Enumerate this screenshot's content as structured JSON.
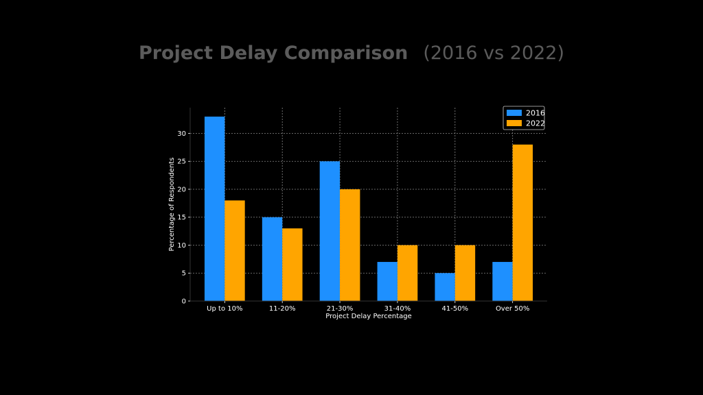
{
  "chart_data": {
    "type": "bar",
    "title": "Project Delay Comparison",
    "subtitle": "(2016 vs 2022)",
    "xlabel": "Project Delay Percentage",
    "ylabel": "Percentage of Respondents",
    "categories": [
      "Up to 10%",
      "11-20%",
      "21-30%",
      "31-40%",
      "41-50%",
      "Over 50%"
    ],
    "series": [
      {
        "name": "2016",
        "color": "#1e90ff",
        "values": [
          33,
          15,
          25,
          7,
          5,
          7
        ]
      },
      {
        "name": "2022",
        "color": "#ffa500",
        "values": [
          18,
          13,
          20,
          10,
          10,
          28
        ]
      }
    ],
    "ylim": [
      0,
      34.6
    ],
    "yticks": [
      0,
      5,
      10,
      15,
      20,
      25,
      30
    ],
    "grid": true,
    "legend": "top-right"
  }
}
